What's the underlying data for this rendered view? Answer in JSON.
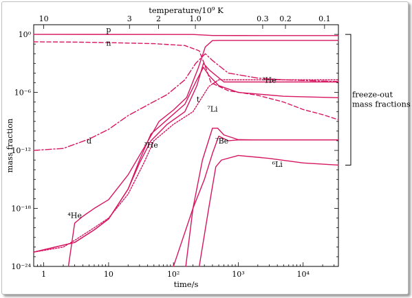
{
  "chart_data": {
    "type": "line",
    "title": "",
    "xlabel": "time/s",
    "ylabel": "mass fraction",
    "x2label": "temperature/10⁹ K",
    "x_scale": "log",
    "y_scale": "log",
    "xlim": [
      0.7,
      35000
    ],
    "ylim": [
      1e-24,
      10
    ],
    "x_ticks": [
      {
        "value": 1,
        "label": "1"
      },
      {
        "value": 10,
        "label": "10"
      },
      {
        "value": 100,
        "label": "10²"
      },
      {
        "value": 1000,
        "label": "10³"
      },
      {
        "value": 10000,
        "label": "10⁴"
      }
    ],
    "y_ticks": [
      {
        "value": 1,
        "label": "10⁰"
      },
      {
        "value": 1e-06,
        "label": "10⁻⁶"
      },
      {
        "value": 1e-12,
        "label": "10⁻¹²"
      },
      {
        "value": 1e-18,
        "label": "10⁻¹⁸"
      },
      {
        "value": 1e-24,
        "label": "10⁻²⁴"
      }
    ],
    "temperature_ticks": [
      {
        "time": 1.0,
        "label": "10"
      },
      {
        "time": 21,
        "label": "3"
      },
      {
        "time": 59,
        "label": "2"
      },
      {
        "time": 218,
        "label": "1.0"
      },
      {
        "time": 2380,
        "label": "0.3"
      },
      {
        "time": 5340,
        "label": "0.2"
      },
      {
        "time": 21400,
        "label": "0.1"
      }
    ],
    "series": [
      {
        "name": "p",
        "label_at": [
          10,
          1.7
        ],
        "dash": "solid",
        "color": "#d6145f",
        "points": [
          [
            0.7,
            1
          ],
          [
            200,
            0.98
          ],
          [
            400,
            0.77
          ],
          [
            1000,
            0.76
          ],
          [
            35000,
            0.75
          ]
        ]
      },
      {
        "name": "n",
        "label_at": [
          10,
          0.07
        ],
        "dash": "dashed",
        "color": "#d6145f",
        "points": [
          [
            0.7,
            0.17
          ],
          [
            3,
            0.16
          ],
          [
            10,
            0.14
          ],
          [
            50,
            0.11
          ],
          [
            150,
            0.07
          ],
          [
            250,
            0.02
          ],
          [
            310,
            0.0005
          ],
          [
            380,
            1e-05
          ],
          [
            700,
            1.5e-06
          ],
          [
            2000,
            5e-07
          ],
          [
            5000,
            1e-07
          ],
          [
            10000,
            1.7e-08
          ],
          [
            20000,
            5e-09
          ],
          [
            35000,
            1.5e-09
          ]
        ]
      },
      {
        "name": "⁴He",
        "label_at": [
          3,
          1e-19
        ],
        "dash": "solid",
        "color": "#d6145f",
        "points": [
          [
            2.4,
            1e-24
          ],
          [
            3,
            3e-20
          ],
          [
            4,
            1.5e-19
          ],
          [
            6,
            1e-18
          ],
          [
            10,
            8e-18
          ],
          [
            20,
            3e-15
          ],
          [
            40,
            8e-12
          ],
          [
            60,
            1e-09
          ],
          [
            100,
            1.5e-08
          ],
          [
            160,
            3e-07
          ],
          [
            240,
            0.0003
          ],
          [
            310,
            0.05
          ],
          [
            400,
            0.23
          ],
          [
            500,
            0.24
          ],
          [
            1000,
            0.24
          ],
          [
            35000,
            0.24
          ]
        ]
      },
      {
        "name": "d",
        "label_at": [
          5,
          5e-12
        ],
        "dash": "dashdot",
        "color": "#d6145f",
        "points": [
          [
            0.7,
            1e-12
          ],
          [
            2,
            1.6e-12
          ],
          [
            5,
            1.5e-11
          ],
          [
            10,
            1.5e-10
          ],
          [
            20,
            4e-09
          ],
          [
            40,
            5e-08
          ],
          [
            80,
            6e-07
          ],
          [
            150,
            2e-05
          ],
          [
            220,
            0.001
          ],
          [
            310,
            0.01
          ],
          [
            400,
            0.002
          ],
          [
            700,
            0.0001
          ],
          [
            2000,
            3e-05
          ],
          [
            5000,
            2e-05
          ],
          [
            35000,
            1.3e-05
          ]
        ]
      },
      {
        "name": "t",
        "label_at": [
          240,
          1e-07
        ],
        "dash": "solid",
        "color": "#d6145f",
        "points": [
          [
            0.7,
            3e-23
          ],
          [
            1.5,
            1e-22
          ],
          [
            3,
            3e-22
          ],
          [
            6,
            6e-21
          ],
          [
            10,
            8e-20
          ],
          [
            20,
            1e-16
          ],
          [
            30,
            1e-13
          ],
          [
            45,
            5e-11
          ],
          [
            80,
            1.5e-09
          ],
          [
            150,
            6e-08
          ],
          [
            230,
            2e-05
          ],
          [
            290,
            0.0004
          ],
          [
            350,
            6e-05
          ],
          [
            500,
            5e-06
          ],
          [
            1000,
            1e-06
          ],
          [
            5000,
            4e-07
          ],
          [
            35000,
            2.8e-07
          ]
        ]
      },
      {
        "name": "³He",
        "label_at": [
          3000,
          1e-05
        ],
        "dash": "solid",
        "color": "#d6145f",
        "points": [
          [
            0.7,
            3e-23
          ],
          [
            1.5,
            1e-22
          ],
          [
            3,
            3e-22
          ],
          [
            6,
            6e-21
          ],
          [
            10,
            8e-20
          ],
          [
            20,
            1e-16
          ],
          [
            30,
            5e-14
          ],
          [
            45,
            1e-11
          ],
          [
            80,
            5e-10
          ],
          [
            150,
            1e-08
          ],
          [
            230,
            5e-06
          ],
          [
            290,
            0.001
          ],
          [
            360,
            0.0002
          ],
          [
            600,
            1.2e-05
          ],
          [
            2000,
            1.2e-05
          ],
          [
            35000,
            1.2e-05
          ]
        ]
      },
      {
        "name": "³He",
        "label_at": [
          45,
          2e-12
        ],
        "dash": "dotted",
        "color": "#d6145f",
        "points": [
          [
            0.7,
            3e-23
          ],
          [
            2,
            1e-22
          ],
          [
            3,
            5e-22
          ],
          [
            6,
            1e-20
          ],
          [
            10,
            1e-19
          ],
          [
            20,
            3e-17
          ],
          [
            35,
            5e-14
          ],
          [
            50,
            1e-11
          ],
          [
            100,
            5e-10
          ],
          [
            200,
            1e-08
          ],
          [
            350,
            4e-06
          ],
          [
            500,
            2e-05
          ],
          [
            1000,
            2e-05
          ],
          [
            35000,
            2e-05
          ]
        ]
      },
      {
        "name": "⁷Li",
        "label_at": [
          400,
          1e-08
        ],
        "dash": "solid",
        "color": "#d6145f",
        "points": [
          [
            155,
            1e-24
          ],
          [
            200,
            1e-18
          ],
          [
            280,
            1e-13
          ],
          [
            400,
            2e-10
          ],
          [
            480,
            2e-10
          ],
          [
            600,
            4e-11
          ],
          [
            1000,
            1.3e-11
          ],
          [
            2000,
            1.2e-11
          ],
          [
            35000,
            1.2e-11
          ]
        ]
      },
      {
        "name": "⁷Be",
        "label_at": [
          560,
          5e-12
        ],
        "dash": "solid",
        "color": "#d6145f",
        "points": [
          [
            100,
            1e-24
          ],
          [
            200,
            1e-18
          ],
          [
            300,
            1e-15
          ],
          [
            400,
            5e-13
          ],
          [
            500,
            3e-11
          ],
          [
            700,
            1e-11
          ],
          [
            1000,
            1.2e-11
          ],
          [
            35000,
            1.2e-11
          ]
        ]
      },
      {
        "name": "⁶Li",
        "label_at": [
          4000,
          2e-14
        ],
        "dash": "solid",
        "color": "#d6145f",
        "points": [
          [
            250,
            1e-24
          ],
          [
            350,
            1e-18
          ],
          [
            450,
            2e-14
          ],
          [
            550,
            1e-13
          ],
          [
            1000,
            3e-13
          ],
          [
            3000,
            1.5e-13
          ],
          [
            10000,
            5e-14
          ],
          [
            35000,
            3e-14
          ]
        ]
      }
    ],
    "annotation": {
      "lines": [
        "freeze-out",
        "mass fractions"
      ],
      "bracket_y": [
        1,
        3e-14
      ]
    },
    "grid": false,
    "legend": "inline labels"
  }
}
